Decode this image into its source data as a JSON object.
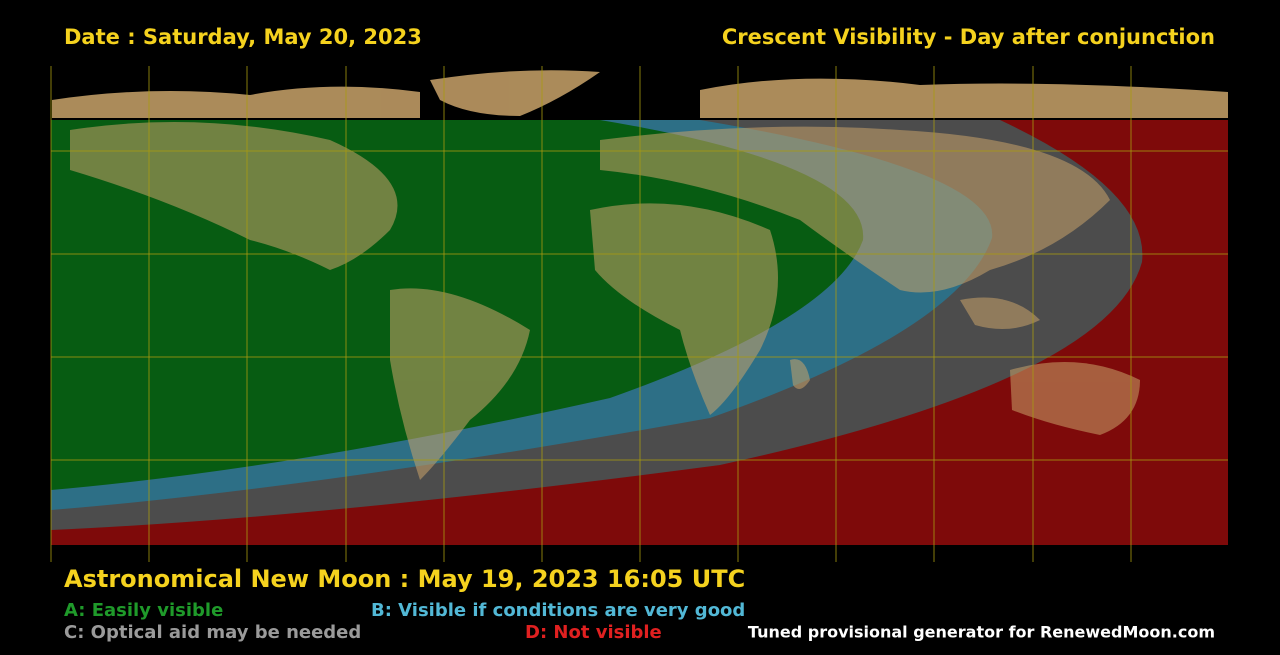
{
  "header": {
    "date": "Date : Saturday, May 20, 2023",
    "title": "Crescent Visibility - Day after conjunction"
  },
  "footer": {
    "new_moon": "Astronomical New Moon : May 19, 2023 16:05 UTC",
    "legend": [
      {
        "label": "A: Easily visible"
      },
      {
        "label": "B: Visible if conditions are very good"
      },
      {
        "label": "C: Optical aid may be needed"
      },
      {
        "label": "D: Not visible"
      }
    ],
    "credit": "Tuned provisional generator for RenewedMoon.com"
  }
}
